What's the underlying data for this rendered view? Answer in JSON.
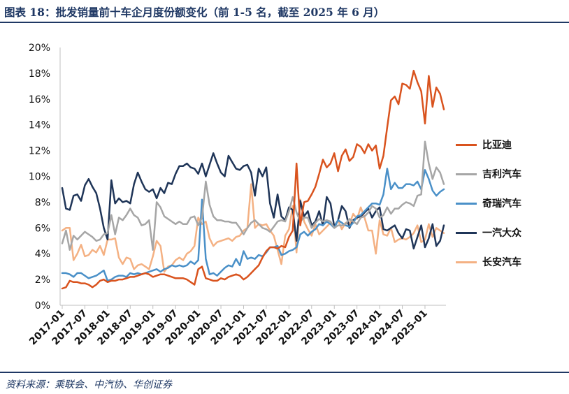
{
  "header": {
    "title": "图表 18：批发销量前十车企月度份额变化（前 1-5 名，截至 2025 年 6 月）"
  },
  "footer": {
    "source": "资料来源：乘联会、中汽协、华创证券"
  },
  "chart_data": {
    "type": "line",
    "title": "批发销量前十车企月度份额变化（前 1-5 名，截至 2025 年 6 月）",
    "xlabel": "",
    "ylabel": "",
    "ylim": [
      0,
      20
    ],
    "y_ticks": [
      "0%",
      "2%",
      "4%",
      "6%",
      "8%",
      "10%",
      "12%",
      "14%",
      "16%",
      "18%",
      "20%"
    ],
    "x_ticks": [
      "2017-01",
      "2017-07",
      "2018-01",
      "2018-07",
      "2019-01",
      "2019-07",
      "2020-01",
      "2020-07",
      "2021-01",
      "2021-07",
      "2022-01",
      "2022-07",
      "2023-01",
      "2023-07",
      "2024-01",
      "2024-07",
      "2025-01"
    ],
    "x_tick_index": [
      0,
      6,
      12,
      18,
      24,
      30,
      36,
      42,
      48,
      54,
      60,
      66,
      72,
      78,
      84,
      90,
      96
    ],
    "x_start": "2017-01",
    "x_end": "2025-06",
    "n_points": 102,
    "legend_position": "right",
    "series": [
      {
        "name": "比亚迪",
        "color": "#d9531e",
        "values": [
          1.3,
          1.4,
          1.9,
          1.8,
          1.8,
          1.7,
          1.7,
          1.6,
          1.4,
          1.6,
          1.9,
          2.0,
          1.8,
          1.9,
          1.9,
          2.0,
          2.0,
          2.1,
          2.2,
          2.2,
          2.3,
          2.4,
          2.5,
          2.4,
          2.2,
          2.3,
          2.4,
          2.4,
          2.3,
          2.2,
          2.1,
          2.1,
          2.1,
          2.0,
          1.8,
          1.6,
          2.8,
          3.0,
          2.1,
          2.0,
          1.9,
          1.9,
          2.1,
          2.0,
          2.2,
          2.3,
          2.4,
          2.3,
          2.0,
          2.2,
          2.5,
          2.8,
          3.1,
          3.7,
          4.2,
          4.5,
          4.5,
          4.4,
          4.6,
          4.5,
          5.3,
          5.8,
          11.0,
          6.2,
          8.0,
          8.1,
          8.6,
          9.2,
          10.2,
          11.3,
          10.7,
          11.0,
          11.8,
          10.4,
          11.6,
          12.1,
          11.2,
          11.5,
          12.5,
          12.3,
          11.8,
          12.5,
          12.0,
          12.4,
          10.6,
          11.6,
          13.8,
          15.9,
          16.2,
          15.6,
          17.2,
          17.1,
          16.8,
          18.2,
          17.3,
          16.6,
          14.1,
          17.8,
          15.4,
          16.9,
          16.4,
          15.2
        ]
      },
      {
        "name": "吉利汽车",
        "color": "#a6a6a6",
        "values": [
          4.8,
          5.8,
          4.3,
          5.4,
          5.1,
          5.4,
          5.7,
          5.5,
          5.3,
          5.0,
          5.1,
          5.5,
          5.6,
          7.0,
          5.5,
          6.8,
          6.6,
          7.0,
          7.5,
          7.0,
          6.8,
          6.2,
          6.3,
          6.6,
          4.3,
          8.0,
          7.6,
          6.9,
          6.7,
          6.5,
          6.3,
          6.5,
          6.3,
          6.3,
          6.8,
          6.9,
          6.2,
          6.8,
          9.6,
          7.8,
          6.9,
          6.6,
          6.6,
          6.5,
          6.5,
          6.4,
          6.4,
          6.0,
          5.5,
          6.0,
          6.4,
          6.6,
          6.3,
          6.0,
          5.9,
          5.7,
          6.1,
          6.5,
          6.6,
          6.5,
          7.3,
          8.4,
          7.2,
          6.5,
          6.8,
          6.8,
          6.0,
          6.4,
          6.7,
          6.5,
          6.6,
          6.5,
          6.0,
          6.2,
          6.2,
          6.3,
          6.7,
          6.5,
          6.3,
          6.8,
          6.9,
          7.2,
          7.7,
          7.5,
          6.8,
          7.0,
          7.6,
          7.1,
          7.5,
          7.5,
          7.8,
          8.0,
          7.9,
          7.7,
          8.5,
          8.6,
          12.7,
          11.0,
          9.8,
          10.7,
          10.3,
          9.4
        ]
      },
      {
        "name": "奇瑞汽车",
        "color": "#4a90c8",
        "values": [
          2.5,
          2.5,
          2.4,
          2.2,
          2.5,
          2.5,
          2.3,
          2.1,
          2.2,
          2.3,
          2.5,
          2.7,
          1.9,
          2.0,
          2.2,
          2.3,
          2.3,
          2.2,
          2.5,
          2.4,
          2.5,
          2.4,
          2.5,
          2.6,
          2.7,
          2.8,
          2.6,
          2.8,
          2.9,
          3.1,
          3.0,
          3.1,
          3.0,
          3.1,
          3.4,
          3.2,
          3.5,
          8.2,
          3.6,
          2.4,
          2.5,
          2.3,
          2.6,
          2.9,
          3.1,
          3.0,
          3.6,
          3.1,
          4.2,
          3.6,
          3.7,
          3.6,
          3.9,
          3.8,
          4.1,
          4.5,
          4.5,
          4.6,
          3.9,
          4.0,
          4.2,
          4.3,
          4.5,
          5.5,
          5.7,
          5.4,
          5.7,
          5.9,
          6.3,
          6.2,
          6.5,
          6.3,
          6.0,
          6.6,
          6.4,
          6.2,
          6.1,
          6.4,
          6.9,
          7.0,
          7.3,
          7.6,
          7.9,
          7.9,
          7.8,
          8.6,
          10.6,
          9.0,
          9.5,
          9.1,
          9.1,
          9.4,
          9.4,
          9.3,
          9.6,
          9.0,
          10.5,
          9.8,
          8.9,
          8.5,
          8.8,
          9.0
        ]
      },
      {
        "name": "一汽大众",
        "color": "#1f3558",
        "values": [
          9.1,
          7.5,
          7.4,
          8.5,
          8.6,
          8.1,
          9.3,
          9.8,
          9.2,
          8.7,
          7.5,
          6.0,
          5.1,
          9.7,
          7.9,
          8.3,
          8.0,
          8.1,
          7.9,
          9.4,
          10.3,
          9.6,
          9.0,
          8.8,
          9.0,
          8.3,
          9.1,
          8.7,
          9.5,
          9.4,
          10.2,
          10.8,
          10.8,
          11.0,
          10.7,
          10.6,
          10.2,
          11.0,
          10.0,
          10.9,
          11.8,
          11.0,
          10.3,
          10.0,
          11.6,
          11.1,
          10.6,
          10.5,
          10.8,
          10.9,
          10.3,
          8.5,
          10.6,
          10.0,
          10.7,
          7.9,
          6.8,
          8.6,
          6.9,
          6.6,
          7.6,
          7.4,
          5.0,
          8.1,
          6.9,
          7.3,
          6.2,
          6.5,
          7.3,
          6.2,
          8.4,
          7.9,
          6.1,
          6.6,
          7.7,
          7.3,
          6.0,
          6.6,
          6.8,
          6.9,
          7.2,
          7.5,
          6.8,
          7.3,
          7.6,
          5.9,
          5.8,
          6.0,
          6.2,
          5.6,
          5.2,
          5.9,
          5.8,
          4.4,
          5.3,
          6.2,
          4.5,
          5.2,
          6.3,
          4.6,
          5.0,
          6.2
        ]
      },
      {
        "name": "长安汽车",
        "color": "#f4b183",
        "values": [
          5.8,
          6.0,
          6.0,
          3.5,
          4.0,
          4.7,
          3.8,
          3.9,
          4.3,
          4.1,
          4.6,
          3.9,
          5.1,
          5.1,
          5.2,
          3.7,
          3.2,
          3.7,
          3.6,
          2.8,
          3.1,
          3.2,
          3.0,
          2.8,
          3.8,
          5.0,
          4.6,
          2.6,
          3.0,
          3.1,
          3.5,
          3.7,
          3.5,
          4.0,
          4.2,
          4.6,
          6.8,
          6.3,
          6.5,
          5.2,
          4.6,
          4.9,
          5.0,
          5.1,
          5.2,
          5.0,
          5.3,
          5.4,
          5.8,
          6.0,
          9.4,
          6.0,
          6.3,
          6.2,
          6.3,
          5.8,
          5.4,
          4.3,
          3.2,
          5.4,
          5.9,
          7.7,
          4.1,
          8.2,
          6.5,
          5.9,
          5.4,
          6.3,
          5.5,
          5.8,
          6.1,
          6.4,
          6.0,
          6.6,
          5.9,
          6.4,
          6.3,
          7.1,
          6.7,
          7.6,
          6.8,
          5.8,
          5.8,
          4.0,
          6.6,
          5.5,
          5.4,
          6.0,
          4.9,
          5.1,
          5.2,
          5.1,
          5.3,
          5.6,
          6.2,
          4.9,
          5.1,
          6.3,
          5.3,
          6.0,
          5.8,
          5.6
        ]
      }
    ]
  }
}
